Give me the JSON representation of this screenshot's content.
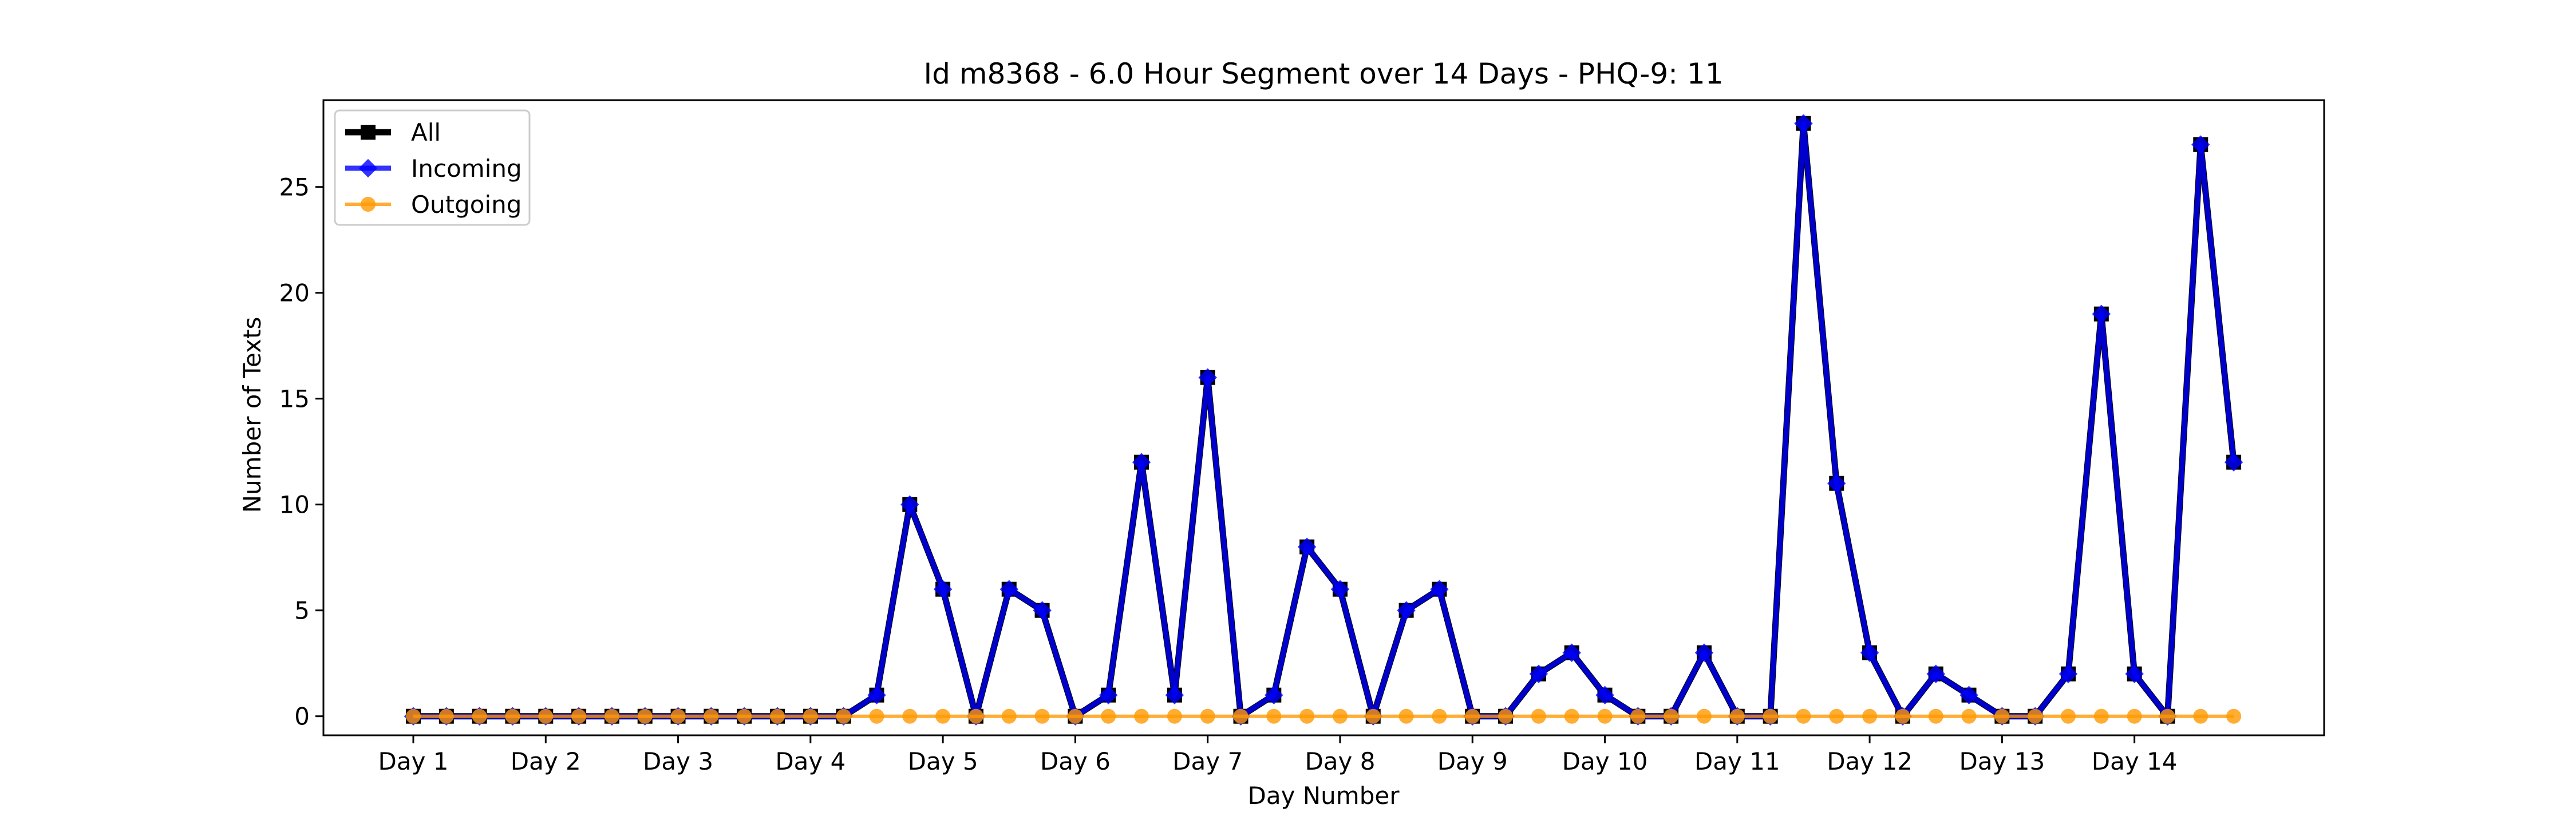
{
  "chart_data": {
    "type": "line",
    "title": "Id m8368 - 6.0 Hour Segment over 14 Days - PHQ-9: 11",
    "xlabel": "Day Number",
    "ylabel": "Number of Texts",
    "x_tick_labels": [
      "Day 1",
      "Day 2",
      "Day 3",
      "Day 4",
      "Day 5",
      "Day 6",
      "Day 7",
      "Day 8",
      "Day 9",
      "Day 10",
      "Day 11",
      "Day 12",
      "Day 13",
      "Day 14"
    ],
    "y_ticks": [
      0,
      5,
      10,
      15,
      20,
      25
    ],
    "ylim": [
      -0.9,
      29.1
    ],
    "grid": false,
    "legend_position": "top-left",
    "series": [
      {
        "name": "All",
        "color": "#000000",
        "marker": "square",
        "values": [
          0,
          0,
          0,
          0,
          0,
          0,
          0,
          0,
          0,
          0,
          0,
          0,
          0,
          0,
          1,
          10,
          6,
          0,
          6,
          5,
          0,
          1,
          12,
          1,
          16,
          0,
          1,
          8,
          6,
          0,
          5,
          6,
          0,
          0,
          2,
          3,
          1,
          0,
          0,
          3,
          0,
          0,
          28,
          11,
          3,
          0,
          2,
          1,
          0,
          0,
          2,
          19,
          2,
          0,
          27,
          12
        ]
      },
      {
        "name": "Incoming",
        "color": "#0000ff",
        "marker": "diamond",
        "values": [
          0,
          0,
          0,
          0,
          0,
          0,
          0,
          0,
          0,
          0,
          0,
          0,
          0,
          0,
          1,
          10,
          6,
          0,
          6,
          5,
          0,
          1,
          12,
          1,
          16,
          0,
          1,
          8,
          6,
          0,
          5,
          6,
          0,
          0,
          2,
          3,
          1,
          0,
          0,
          3,
          0,
          0,
          28,
          11,
          3,
          0,
          2,
          1,
          0,
          0,
          2,
          19,
          2,
          0,
          27,
          12
        ]
      },
      {
        "name": "Outgoing",
        "color": "#ff9900",
        "marker": "circle",
        "values": [
          0,
          0,
          0,
          0,
          0,
          0,
          0,
          0,
          0,
          0,
          0,
          0,
          0,
          0,
          0,
          0,
          0,
          0,
          0,
          0,
          0,
          0,
          0,
          0,
          0,
          0,
          0,
          0,
          0,
          0,
          0,
          0,
          0,
          0,
          0,
          0,
          0,
          0,
          0,
          0,
          0,
          0,
          0,
          0,
          0,
          0,
          0,
          0,
          0,
          0,
          0,
          0,
          0,
          0,
          0,
          0
        ]
      }
    ]
  }
}
